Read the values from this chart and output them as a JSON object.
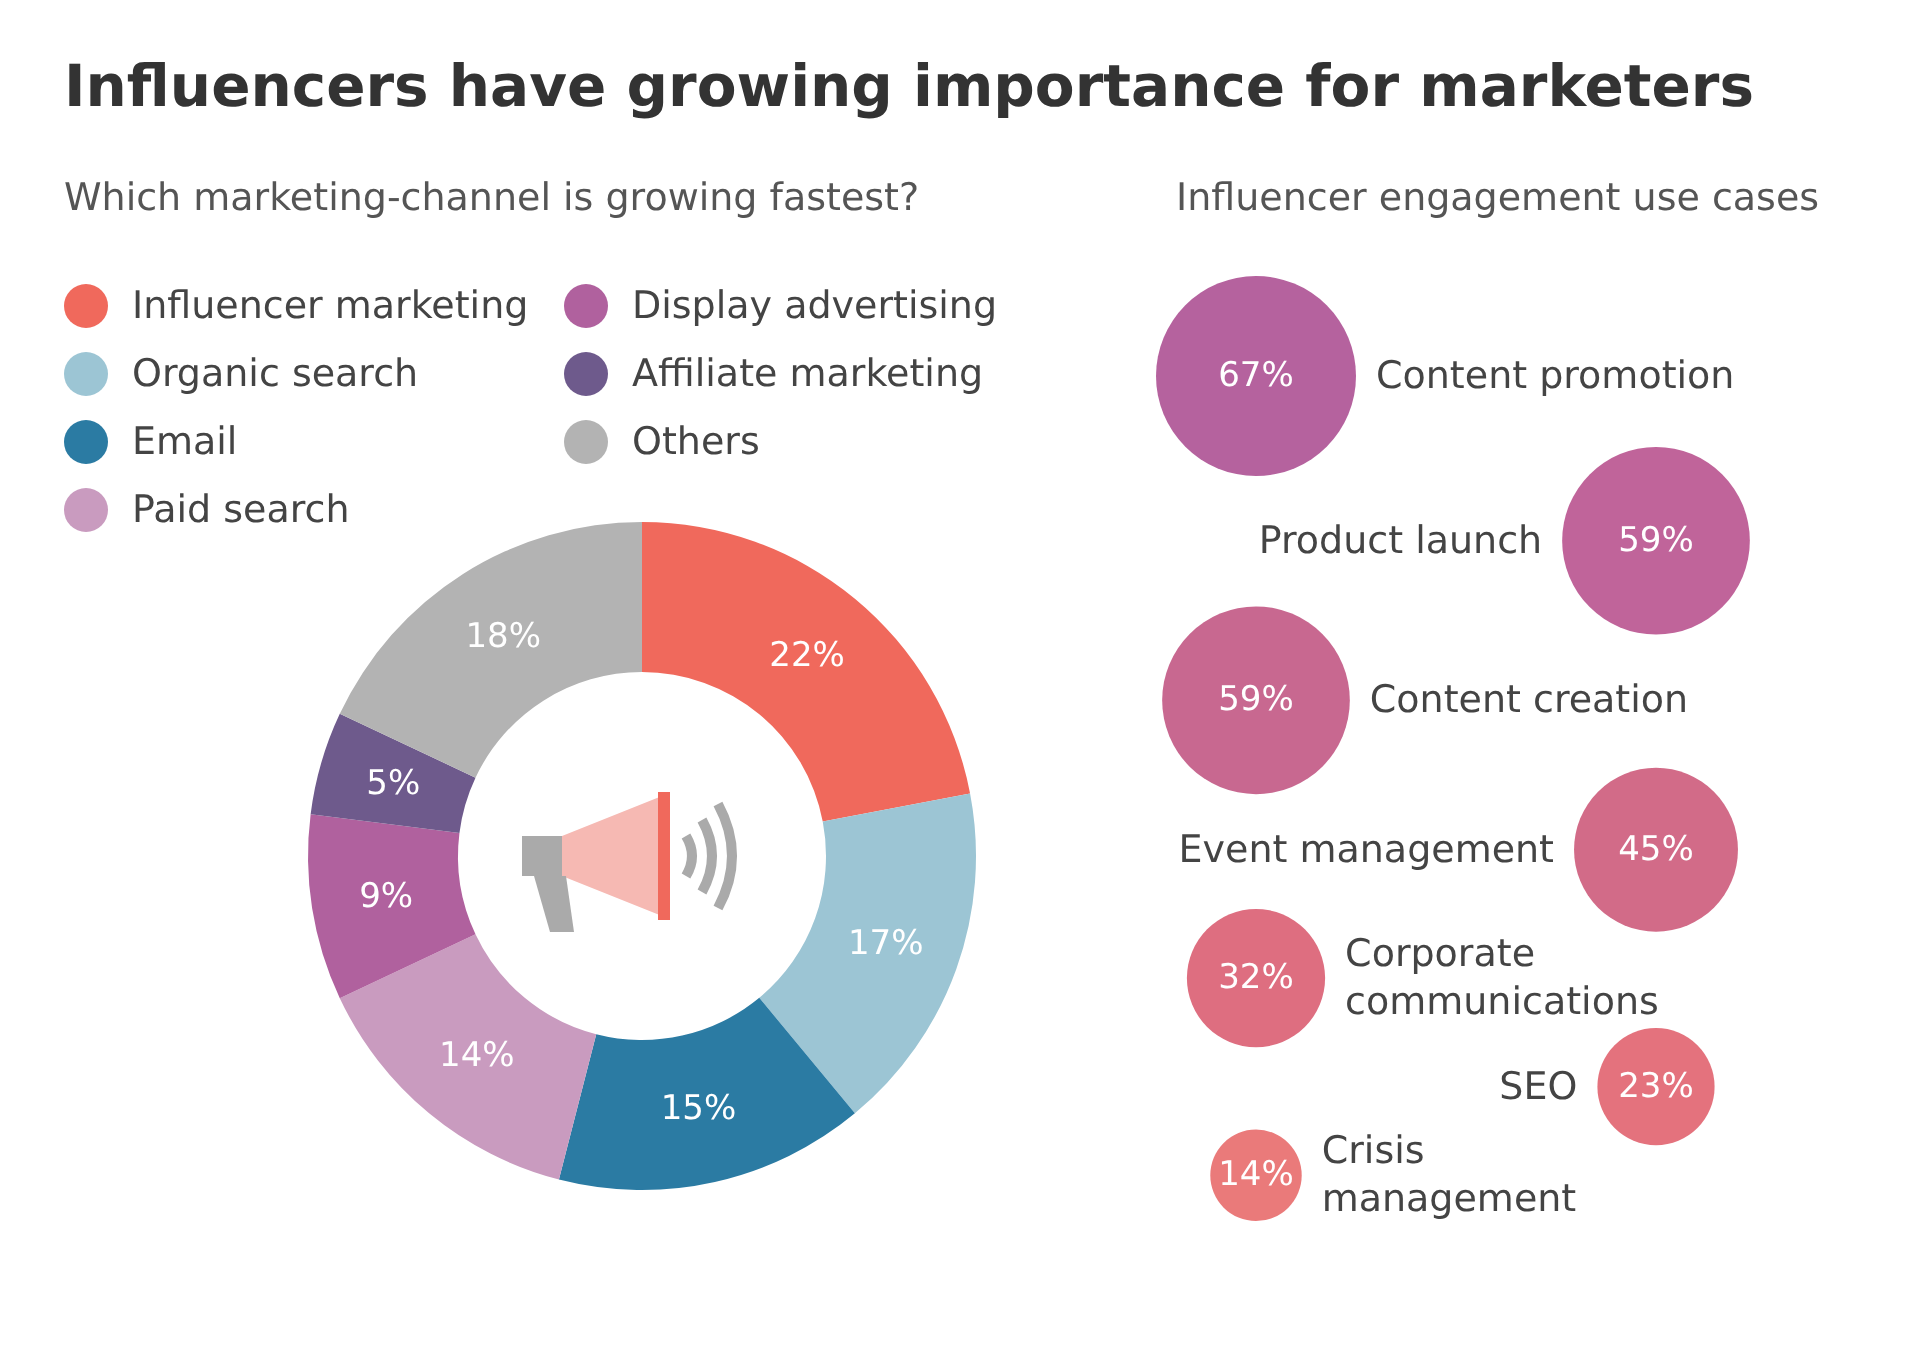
{
  "chart_data": [
    {
      "type": "donut",
      "title": "Influencers have growing importance for marketers",
      "subtitle": "Which marketing-channel is growing fastest?",
      "categories": [
        "Influencer marketing",
        "Organic search",
        "Email",
        "Paid search",
        "Display advertising",
        "Affiliate marketing",
        "Others"
      ],
      "values": [
        22,
        17,
        15,
        14,
        9,
        5,
        18
      ],
      "value_labels": [
        "22%",
        "17%",
        "15%",
        "14%",
        "9%",
        "5%",
        "18%"
      ],
      "colors": [
        "#f0695c",
        "#9cc5d4",
        "#2b7ba3",
        "#c99bbf",
        "#b0619e",
        "#6e5a8c",
        "#b3b3b3"
      ],
      "legend": "top"
    },
    {
      "type": "other",
      "title": "Influencer engagement use cases",
      "categories": [
        "Content promotion",
        "Product launch",
        "Content creation",
        "Event management",
        "Corporate\ncommunications",
        "SEO",
        "Crisis\nmanagement"
      ],
      "values": [
        67,
        59,
        59,
        45,
        32,
        23,
        14
      ],
      "value_labels": [
        "67%",
        "59%",
        "59%",
        "45%",
        "32%",
        "23%",
        "14%"
      ],
      "colors": [
        "#b5629e",
        "#c0649a",
        "#c86890",
        "#d26b88",
        "#de6e80",
        "#e4727d",
        "#ea7a7a"
      ]
    }
  ]
}
